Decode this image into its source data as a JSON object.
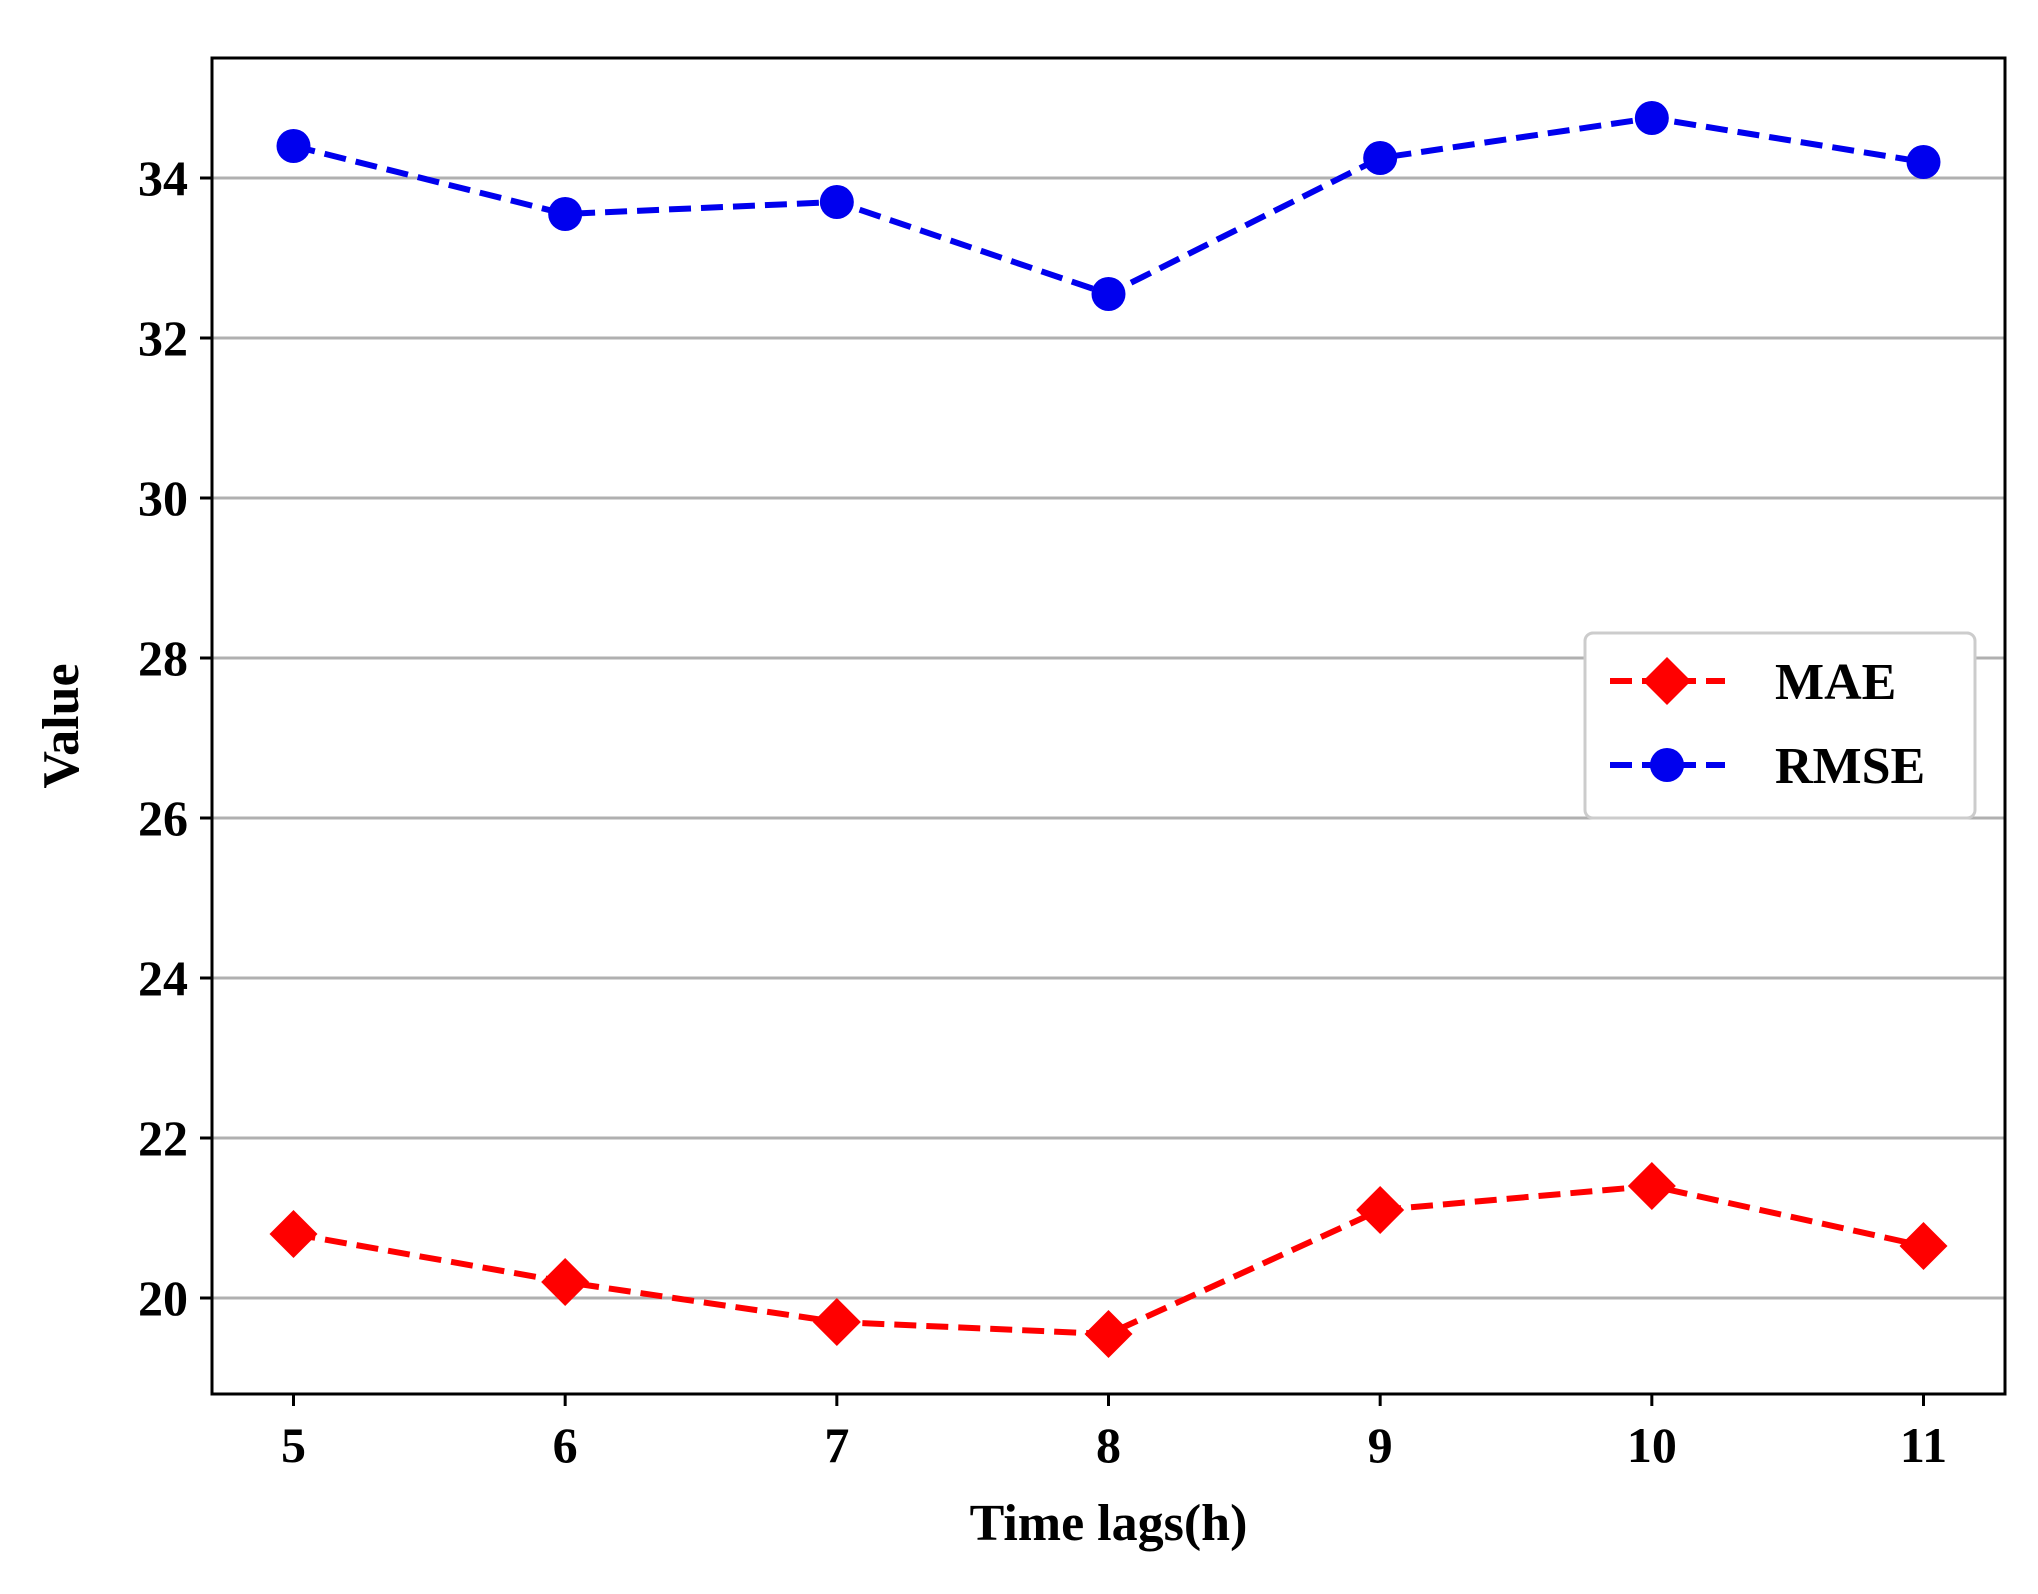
{
  "chart_data": {
    "type": "line",
    "title": "",
    "xlabel": "Time lags(h)",
    "ylabel": "Value",
    "x": [
      5,
      6,
      7,
      8,
      9,
      10,
      11
    ],
    "x_tick_labels": [
      "5",
      "6",
      "7",
      "8",
      "9",
      "10",
      "11"
    ],
    "y_ticks": [
      20,
      22,
      24,
      26,
      28,
      30,
      32,
      34
    ],
    "y_tick_labels": [
      "20",
      "22",
      "24",
      "26",
      "28",
      "30",
      "32",
      "34"
    ],
    "xlim": [
      4.7,
      11.3
    ],
    "ylim": [
      18.8,
      35.5
    ],
    "grid": "horizontal",
    "legend_position": "center-right",
    "series": [
      {
        "name": "MAE",
        "values": [
          20.8,
          20.2,
          19.7,
          19.55,
          21.1,
          21.4,
          20.65
        ],
        "color": "#ff0000",
        "marker": "diamond",
        "linestyle": "dashed"
      },
      {
        "name": "RMSE",
        "values": [
          34.4,
          33.55,
          33.7,
          32.55,
          34.25,
          34.75,
          34.2
        ],
        "color": "#0000ee",
        "marker": "circle",
        "linestyle": "dashed"
      }
    ],
    "colors": {
      "grid": "#b0b0b0",
      "axes": "#000000",
      "legend_border": "#cccccc"
    }
  }
}
